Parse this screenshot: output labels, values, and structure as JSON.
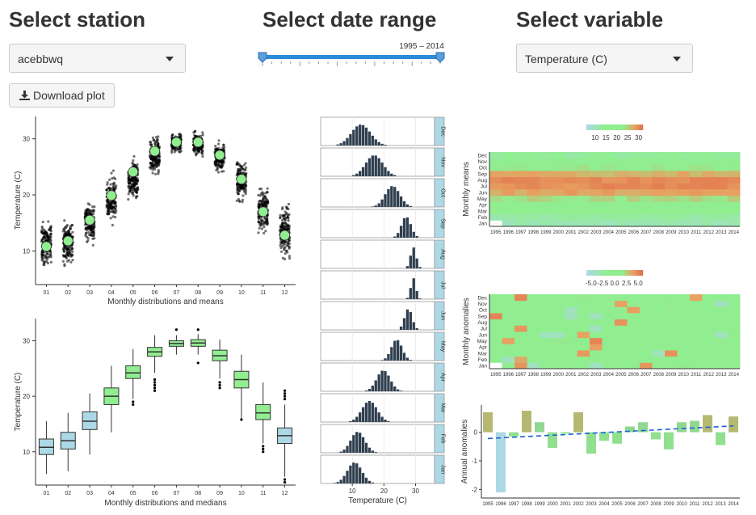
{
  "headers": {
    "station": "Select station",
    "date_range": "Select date range",
    "variable": "Select variable"
  },
  "station_select": {
    "value": "acebbwq"
  },
  "variable_select": {
    "value": "Temperature (C)"
  },
  "date_slider": {
    "range_label": "1995 – 2014",
    "min_year": 1995,
    "max_year": 2014,
    "from": 1995,
    "to": 2014
  },
  "download_button": {
    "label": "Download plot",
    "icon": "download-icon"
  },
  "colors": {
    "box_cold": "#add8e6",
    "box_warm": "#90ee90",
    "points": "#000000",
    "mean_fill": "#90ee90",
    "bars": "#2f3f4f",
    "facet_strip": "#add8e6",
    "trend": "#1a5fd6"
  },
  "chart_data": [
    {
      "id": "monthly-means",
      "type": "scatter",
      "title": "",
      "xlabel": "Monthly distributions and means",
      "ylabel": "Temperature (C)",
      "categories": [
        "01",
        "02",
        "03",
        "04",
        "05",
        "06",
        "07",
        "08",
        "09",
        "10",
        "11",
        "12"
      ],
      "means": [
        10.8,
        11.8,
        15.5,
        19.9,
        24.1,
        27.8,
        29.4,
        29.4,
        27.1,
        22.8,
        17.0,
        12.8
      ],
      "spread_min": [
        6,
        6,
        9,
        13,
        17,
        22,
        26.5,
        26,
        22.5,
        16.5,
        11,
        6
      ],
      "spread_max": [
        17,
        17,
        21,
        25,
        28,
        32,
        32,
        32,
        30.5,
        28,
        24,
        21
      ],
      "yticks": [
        10,
        20,
        30
      ],
      "ylim": [
        4,
        34
      ]
    },
    {
      "id": "monthly-medians",
      "type": "boxplot",
      "title": "",
      "xlabel": "Monthly distributions and medians",
      "ylabel": "Temperature (C)",
      "categories": [
        "01",
        "02",
        "03",
        "04",
        "05",
        "06",
        "07",
        "08",
        "09",
        "10",
        "11",
        "12"
      ],
      "boxes": [
        {
          "lo": 6,
          "q1": 9.5,
          "med": 10.8,
          "q3": 12.3,
          "hi": 15.5
        },
        {
          "lo": 6.5,
          "q1": 10.5,
          "med": 12,
          "q3": 13.5,
          "hi": 17
        },
        {
          "lo": 9.5,
          "q1": 14,
          "med": 15.5,
          "q3": 17.2,
          "hi": 20.5
        },
        {
          "lo": 13.5,
          "q1": 18.5,
          "med": 20,
          "q3": 21.5,
          "hi": 25.5
        },
        {
          "lo": 19.5,
          "q1": 23.2,
          "med": 24.2,
          "q3": 25.5,
          "hi": 28.5
        },
        {
          "lo": 24.2,
          "q1": 27.2,
          "med": 28,
          "q3": 28.8,
          "hi": 31
        },
        {
          "lo": 27.5,
          "q1": 29,
          "med": 29.5,
          "q3": 30,
          "hi": 31
        },
        {
          "lo": 27.5,
          "q1": 29,
          "med": 29.6,
          "q3": 30.2,
          "hi": 31.2
        },
        {
          "lo": 23.2,
          "q1": 26.4,
          "med": 27.3,
          "q3": 28.3,
          "hi": 30.2
        },
        {
          "lo": 16,
          "q1": 21.5,
          "med": 23,
          "q3": 24.5,
          "hi": 27.5
        },
        {
          "lo": 11.5,
          "q1": 15.8,
          "med": 17,
          "q3": 18.5,
          "hi": 22.5
        },
        {
          "lo": 5.5,
          "q1": 11.5,
          "med": 12.9,
          "q3": 14.3,
          "hi": 18.5
        }
      ],
      "outliers": [
        [],
        [],
        [],
        [],
        [
          19,
          18.5
        ],
        [
          23,
          22.5,
          22,
          21.5,
          21
        ],
        [
          32
        ],
        [
          26,
          32
        ],
        [
          22.5,
          22,
          21.5
        ],
        [
          15.8
        ],
        [
          11,
          10.5,
          10
        ],
        [
          21,
          20.5,
          20,
          19.5,
          5,
          4.5
        ]
      ],
      "yticks": [
        10,
        20,
        30
      ],
      "ylim": [
        4,
        34
      ]
    },
    {
      "id": "monthly-histograms",
      "type": "bar",
      "title": "",
      "xlabel": "Temperature (C)",
      "xticks": [
        10,
        20,
        30
      ],
      "xlim": [
        0,
        36
      ],
      "facets": [
        "Dec",
        "Nov",
        "Oct",
        "Sep",
        "Aug",
        "Jul",
        "Jun",
        "May",
        "Apr",
        "Mar",
        "Feb",
        "Jan"
      ],
      "facet_means": [
        12.8,
        17.0,
        22.8,
        27.1,
        29.4,
        29.4,
        27.8,
        24.1,
        19.9,
        15.5,
        11.8,
        10.8
      ],
      "facet_sd": [
        3.0,
        2.7,
        2.3,
        1.5,
        0.9,
        0.8,
        1.2,
        1.7,
        2.1,
        2.4,
        2.2,
        2.3
      ]
    },
    {
      "id": "monthly-means-heatmap",
      "type": "heatmap",
      "title": "",
      "xlabel": "",
      "ylabel": "Monthly means",
      "years": [
        "1995",
        "1996",
        "1997",
        "1998",
        "1999",
        "2000",
        "2001",
        "2002",
        "2003",
        "2004",
        "2005",
        "2006",
        "2007",
        "2008",
        "2009",
        "2010",
        "2011",
        "2012",
        "2013",
        "2014"
      ],
      "months": [
        "Jan",
        "Feb",
        "Mar",
        "Apr",
        "May",
        "Jun",
        "Jul",
        "Aug",
        "Sep",
        "Oct",
        "Nov",
        "Dec"
      ],
      "legend_ticks": [
        10,
        15,
        20,
        25,
        30
      ],
      "legend_range": [
        6,
        32
      ]
    },
    {
      "id": "monthly-anomalies-heatmap",
      "type": "heatmap",
      "title": "",
      "xlabel": "",
      "ylabel": "Monthly anomalies",
      "years": [
        "1995",
        "1996",
        "1997",
        "1998",
        "1999",
        "2000",
        "2001",
        "2002",
        "2003",
        "2004",
        "2005",
        "2006",
        "2007",
        "2008",
        "2009",
        "2010",
        "2011",
        "2012",
        "2013",
        "2014"
      ],
      "months": [
        "Jan",
        "Feb",
        "Mar",
        "Apr",
        "May",
        "Jun",
        "Jul",
        "Aug",
        "Sep",
        "Oct",
        "Nov",
        "Dec"
      ],
      "legend_ticks": [
        "-5.0",
        "-2.5",
        "0.0",
        "2.5",
        "5.0"
      ],
      "legend_range": [
        -6,
        6
      ]
    },
    {
      "id": "annual-anomalies",
      "type": "bar",
      "title": "",
      "xlabel": "",
      "ylabel": "Annual anomalies",
      "categories": [
        "1995",
        "1996",
        "1997",
        "1998",
        "1999",
        "2000",
        "2001",
        "2002",
        "2003",
        "2004",
        "2005",
        "2006",
        "2007",
        "2008",
        "2009",
        "2010",
        "2011",
        "2012",
        "2013",
        "2014"
      ],
      "values": [
        0.7,
        -2.1,
        -0.15,
        0.75,
        0.35,
        -0.55,
        -0.05,
        0.7,
        -0.75,
        -0.3,
        -0.4,
        0.2,
        0.35,
        -0.25,
        -0.6,
        0.35,
        0.4,
        0.6,
        -0.45,
        0.55
      ],
      "trend": [
        -0.22,
        0.22
      ],
      "yticks": [
        -2,
        -1,
        0
      ],
      "ylim": [
        -2.3,
        0.95
      ]
    }
  ]
}
